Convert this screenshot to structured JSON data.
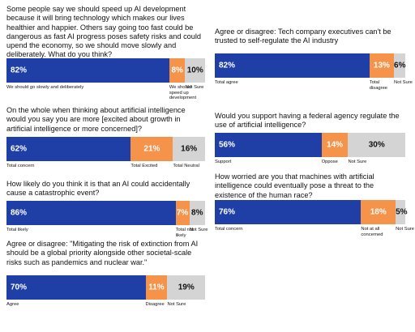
{
  "colors": {
    "blue": "#1f3fa6",
    "orange": "#f5934a",
    "gray": "#d4d4d4",
    "white_text": "#ffffff",
    "dark_text": "#111111"
  },
  "chart_data": [
    {
      "type": "bar",
      "question": "Some people say we should speed up AI development because it will bring technology which makes our lives healthier and happier. Others say going too fast could be dangerous as fast AI progress poses safety risks and could upend the economy, so we should move slowly and deliberately. What do you think?",
      "categories": [
        "We should go slowly and deliberately",
        "We should speed up development",
        "Not Sure"
      ],
      "values": [
        82,
        8,
        10
      ],
      "value_labels": [
        "82%",
        "8%",
        "10%"
      ]
    },
    {
      "type": "bar",
      "question": "On the whole when thinking about artificial intelligence would you say you are more [excited about growth in artificial intelligence or more concerned]?",
      "categories": [
        "Total concern",
        "Total Excited",
        "Total Neutral"
      ],
      "values": [
        62,
        21,
        16
      ],
      "value_labels": [
        "62%",
        "21%",
        "16%"
      ]
    },
    {
      "type": "bar",
      "question": "How likely do you think it is that an AI could accidentally cause a catastrophic event?",
      "categories": [
        "Total likely",
        "Total not likely",
        "Not Sure"
      ],
      "values": [
        86,
        7,
        8
      ],
      "value_labels": [
        "86%",
        "7%",
        "8%"
      ]
    },
    {
      "type": "bar",
      "question": "Agree or disagree: \"Mitigating the risk of extinction from AI should be a global priority alongside other societal-scale risks such as pandemics and nuclear war.\"",
      "categories": [
        "Agree",
        "Disagree",
        "Not Sure"
      ],
      "values": [
        70,
        11,
        19
      ],
      "value_labels": [
        "70%",
        "11%",
        "19%"
      ]
    },
    {
      "type": "bar",
      "question": "Agree or disagree: Tech company executives can't be trusted to self-regulate the AI industry",
      "categories": [
        "Total agree",
        "Total disagree",
        "Not Sure"
      ],
      "values": [
        82,
        13,
        6
      ],
      "value_labels": [
        "82%",
        "13%",
        "6%"
      ]
    },
    {
      "type": "bar",
      "question": "Would you support having a federal agency regulate the use of artificial intelligence?",
      "categories": [
        "Support",
        "Oppose",
        "Not Sure"
      ],
      "values": [
        56,
        14,
        30
      ],
      "value_labels": [
        "56%",
        "14%",
        "30%"
      ]
    },
    {
      "type": "bar",
      "question": "How worried are you that machines with artificial intelligence could eventually pose a threat to the existence of the human race?",
      "categories": [
        "Total concern",
        "Not at all concerned",
        "Not Sure"
      ],
      "values": [
        76,
        18,
        5
      ],
      "value_labels": [
        "76%",
        "18%",
        "5%"
      ]
    }
  ]
}
